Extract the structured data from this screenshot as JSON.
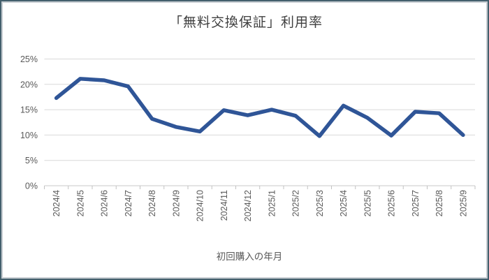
{
  "chart_data": {
    "type": "line",
    "title": "「無料交換保証」利用率",
    "xlabel": "初回購入の年月",
    "ylabel": "",
    "categories": [
      "2024/4",
      "2024/5",
      "2024/6",
      "2024/7",
      "2024/8",
      "2024/9",
      "2024/10",
      "2024/11",
      "2024/12",
      "2025/1",
      "2025/2",
      "2025/3",
      "2025/4",
      "2025/5",
      "2025/6",
      "2025/7",
      "2025/8",
      "2025/9"
    ],
    "values": [
      17.3,
      21.1,
      20.8,
      19.6,
      13.2,
      11.6,
      10.7,
      14.9,
      13.9,
      15.0,
      13.8,
      9.8,
      15.8,
      13.4,
      9.9,
      14.6,
      14.3,
      10.0
    ],
    "ylim": [
      0,
      25
    ],
    "ytick_step": 5,
    "ytick_labels": [
      "0%",
      "5%",
      "10%",
      "15%",
      "20%",
      "25%"
    ],
    "grid": true,
    "legend": false,
    "colors": {
      "line": "#2F5597",
      "gridline": "#D9D9D9",
      "axis_line": "#C9C9C9",
      "tick_mark": "#C2C2C2",
      "tick_label": "#595959",
      "title": "#3F3F3F"
    }
  }
}
